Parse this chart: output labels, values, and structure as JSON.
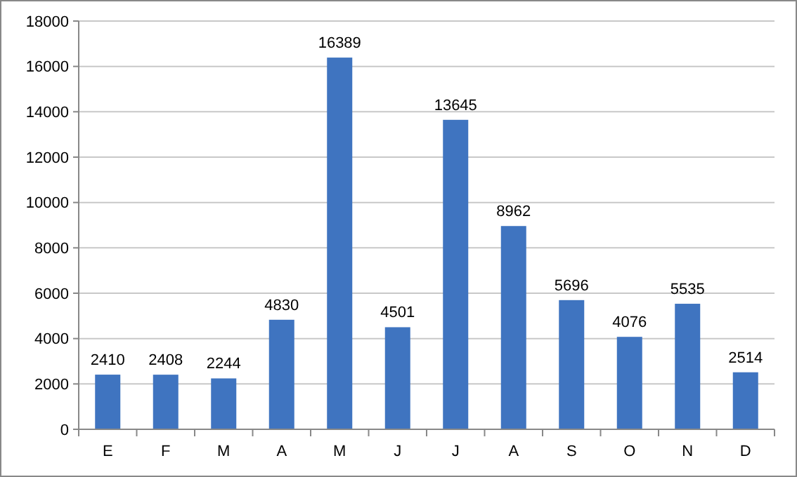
{
  "chart_data": {
    "type": "bar",
    "categories": [
      "E",
      "F",
      "M",
      "A",
      "M",
      "J",
      "J",
      "A",
      "S",
      "O",
      "N",
      "D"
    ],
    "values": [
      2410,
      2408,
      2244,
      4830,
      16389,
      4501,
      13645,
      8962,
      5696,
      4076,
      5535,
      2514
    ],
    "color": "#3f74c0",
    "ylim": [
      0,
      18000
    ],
    "yticks": [
      0,
      2000,
      4000,
      6000,
      8000,
      10000,
      12000,
      14000,
      16000,
      18000
    ],
    "grid": "y",
    "data_labels": true
  }
}
